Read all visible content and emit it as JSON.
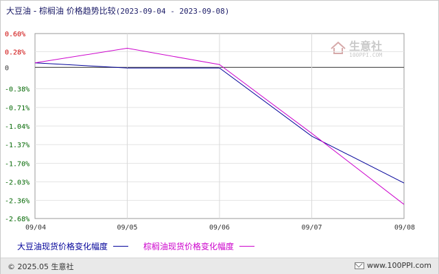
{
  "title": {
    "main": "大豆油 - 棕榈油 价格趋势比较",
    "range": "(2023-09-04 - 2023-09-08)"
  },
  "chart_data": {
    "type": "line",
    "title": "大豆油 - 棕榈油 价格趋势比较(2023-09-04 - 2023-09-08)",
    "categories": [
      "09/04",
      "09/05",
      "09/06",
      "09/07",
      "09/08"
    ],
    "y_ticks": [
      "0.60%",
      "0.28%",
      "0",
      "-0.38%",
      "-0.71%",
      "-1.04%",
      "-1.37%",
      "-1.70%",
      "-2.03%",
      "-2.36%",
      "-2.68%"
    ],
    "y_tick_values": [
      0.6,
      0.28,
      0,
      -0.38,
      -0.71,
      -1.04,
      -1.37,
      -1.7,
      -2.03,
      -2.36,
      -2.68
    ],
    "ylim": [
      -2.68,
      0.6
    ],
    "grid": true,
    "legend_position": "bottom",
    "series": [
      {
        "name": "大豆油现货价格变化幅度",
        "color": "#000099",
        "values": [
          0.08,
          -0.01,
          -0.01,
          -1.22,
          -2.05
        ]
      },
      {
        "name": "棕榈油现货价格变化幅度",
        "color": "#cc00cc",
        "values": [
          0.08,
          0.34,
          0.05,
          -1.17,
          -2.43
        ]
      }
    ]
  },
  "watermark": {
    "name": "生意社",
    "url": "100PPI.COM"
  },
  "footer": {
    "copyright": "© 2025.05 生意社",
    "site": "www.100PPI.com"
  },
  "colors": {
    "accent": "#1a1a66",
    "positive": "#cc0000",
    "negative": "#006600"
  }
}
